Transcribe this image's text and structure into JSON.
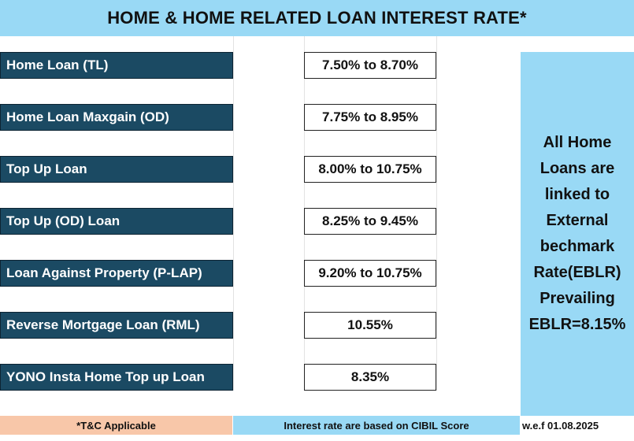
{
  "title": "HOME & HOME RELATED LOAN INTEREST RATE*",
  "loans": [
    {
      "name": "Home Loan (TL)",
      "rate": "7.50% to 8.70%"
    },
    {
      "name": "Home Loan  Maxgain (OD)",
      "rate": "7.75% to 8.95%"
    },
    {
      "name": "Top Up Loan",
      "rate": "8.00% to 10.75%"
    },
    {
      "name": "Top  Up (OD) Loan",
      "rate": "8.25% to 9.45%"
    },
    {
      "name": "Loan Against Property (P-LAP)",
      "rate": "9.20% to 10.75%"
    },
    {
      "name": "Reverse Mortgage Loan (RML)",
      "rate": "10.55%"
    },
    {
      "name": "YONO Insta Home Top up Loan",
      "rate": "8.35%"
    }
  ],
  "side_note": "All Home\nLoans are\nlinked to\nExternal\nbechmark\nRate(EBLR)\nPrevailing\nEBLR=8.15%",
  "footer": {
    "tc": "*T&C Applicable",
    "cibil": "Interest rate are based on CIBIL Score",
    "date": "w.e.f 01.08.2025"
  },
  "colors": {
    "header_bg": "#99d9f5",
    "label_bg": "#1b4a63",
    "tc_bg": "#f8c7a9"
  }
}
